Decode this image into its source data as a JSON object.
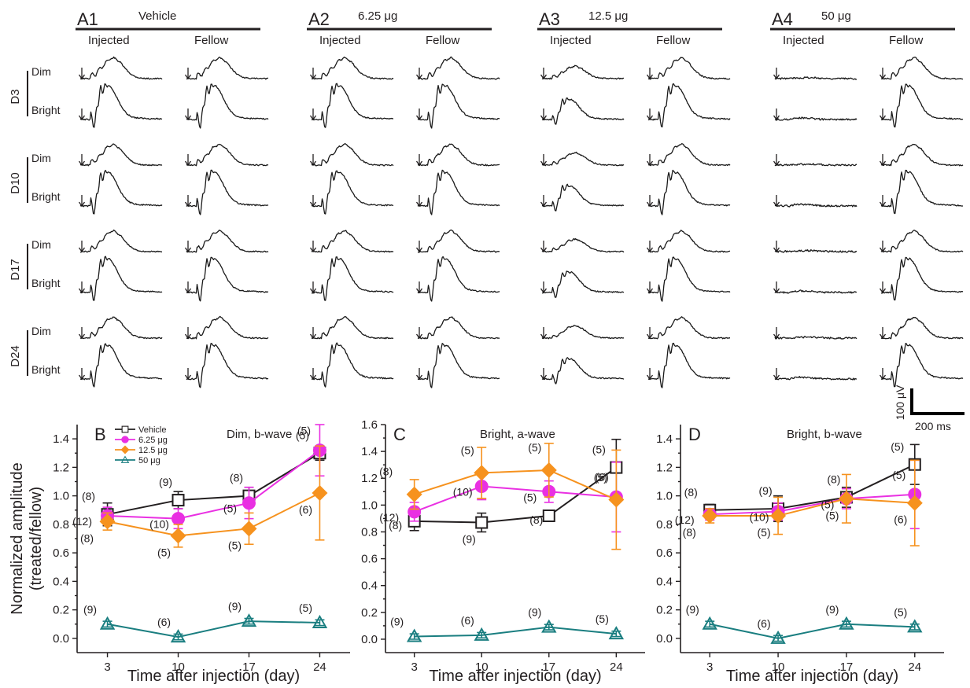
{
  "erg_panels": [
    {
      "id": "A1",
      "dose": "Vehicle",
      "columns": [
        "Injected",
        "Fellow"
      ]
    },
    {
      "id": "A2",
      "dose": "6.25 μg",
      "columns": [
        "Injected",
        "Fellow"
      ]
    },
    {
      "id": "A3",
      "dose": "12.5 μg",
      "columns": [
        "Injected",
        "Fellow"
      ]
    },
    {
      "id": "A4",
      "dose": "50 μg",
      "columns": [
        "Injected",
        "Fellow"
      ]
    }
  ],
  "erg_days": [
    "D3",
    "D10",
    "D17",
    "D24"
  ],
  "erg_row_labels": [
    "Dim",
    "Bright"
  ],
  "erg_amplitude_factor": {
    "A1": {
      "Injected": 1.0,
      "Fellow": 1.0
    },
    "A2": {
      "Injected": 1.0,
      "Fellow": 1.0
    },
    "A3": {
      "Injected": 0.6,
      "Fellow": 1.0
    },
    "A4": {
      "Injected": 0.05,
      "Fellow": 1.0
    }
  },
  "scale_bar": {
    "amplitude_label": "100 μV",
    "time_label": "200 ms"
  },
  "chart_data": [
    {
      "panel": "B",
      "type": "line",
      "title": "Dim, b-wave",
      "xlabel": "Time after injection (day)",
      "ylabel": "Normalized amplitude (treated/fellow)",
      "x": [
        3,
        10,
        17,
        24
      ],
      "xlim": [
        0,
        27
      ],
      "ylim": [
        -0.1,
        1.5
      ],
      "yticks": [
        0.0,
        0.2,
        0.4,
        0.6,
        0.8,
        1.0,
        1.2,
        1.4
      ],
      "legend": {
        "placement": "top-left",
        "entries": [
          "Vehicle",
          "6.25 μg",
          "12.5 μg",
          "50 μg"
        ]
      },
      "series": [
        {
          "name": "Vehicle",
          "color": "#231f20",
          "marker": "square-open",
          "values": [
            0.87,
            0.97,
            1.0,
            1.3
          ],
          "err": [
            0.08,
            0.06,
            0.06,
            0.05
          ],
          "n": [
            "(8)",
            "(9)",
            "(8)",
            "(5)"
          ]
        },
        {
          "name": "6.25 μg",
          "color": "#e930e2",
          "marker": "circle",
          "values": [
            0.86,
            0.84,
            0.95,
            1.32
          ],
          "err": [
            0.06,
            0.07,
            0.11,
            0.18
          ],
          "n": [
            "(12)",
            "(10)",
            "(5)",
            "(5)"
          ]
        },
        {
          "name": "12.5 μg",
          "color": "#f6921e",
          "marker": "diamond",
          "values": [
            0.82,
            0.72,
            0.77,
            1.02
          ],
          "err": [
            0.06,
            0.08,
            0.11,
            0.33
          ],
          "n": [
            "(8)",
            "(5)",
            "(5)",
            "(6)"
          ]
        },
        {
          "name": "50 μg",
          "color": "#1a7e80",
          "marker": "triangle-open",
          "values": [
            0.1,
            0.01,
            0.12,
            0.11
          ],
          "err": [
            0.02,
            0.02,
            0.02,
            0.02
          ],
          "n": [
            "(9)",
            "(6)",
            "(9)",
            "(5)"
          ]
        }
      ]
    },
    {
      "panel": "C",
      "type": "line",
      "title": "Bright, a-wave",
      "xlabel": "Time after injection (day)",
      "x": [
        3,
        10,
        17,
        24
      ],
      "xlim": [
        0,
        27
      ],
      "ylim": [
        -0.1,
        1.6
      ],
      "yticks": [
        0.0,
        0.2,
        0.4,
        0.6,
        0.8,
        1.0,
        1.2,
        1.4,
        1.6
      ],
      "series": [
        {
          "name": "Vehicle",
          "color": "#231f20",
          "marker": "square-open",
          "values": [
            0.88,
            0.87,
            0.92,
            1.28
          ],
          "err": [
            0.07,
            0.07,
            0.03,
            0.21
          ],
          "n": [
            "(8)",
            "(9)",
            "(8)",
            "(5)"
          ]
        },
        {
          "name": "6.25 μg",
          "color": "#e930e2",
          "marker": "circle",
          "values": [
            0.95,
            1.14,
            1.1,
            1.06
          ],
          "err": [
            0.07,
            0.1,
            0.08,
            0.26
          ],
          "n": [
            "(12)",
            "(10)",
            "(5)",
            "(5)"
          ]
        },
        {
          "name": "12.5 μg",
          "color": "#f6921e",
          "marker": "diamond",
          "values": [
            1.08,
            1.24,
            1.26,
            1.04
          ],
          "err": [
            0.11,
            0.19,
            0.2,
            0.37
          ],
          "n": [
            "(8)",
            "(5)",
            "(5)",
            "(6)"
          ]
        },
        {
          "name": "50 μg",
          "color": "#1a7e80",
          "marker": "triangle-open",
          "values": [
            0.02,
            0.03,
            0.09,
            0.04
          ],
          "err": [
            0.02,
            0.02,
            0.02,
            0.02
          ],
          "n": [
            "(9)",
            "(6)",
            "(9)",
            "(5)"
          ]
        }
      ]
    },
    {
      "panel": "D",
      "type": "line",
      "title": "Bright, b-wave",
      "xlabel": "Time after injection (day)",
      "x": [
        3,
        10,
        17,
        24
      ],
      "xlim": [
        0,
        27
      ],
      "ylim": [
        -0.1,
        1.5
      ],
      "yticks": [
        0.0,
        0.2,
        0.4,
        0.6,
        0.8,
        1.0,
        1.2,
        1.4
      ],
      "series": [
        {
          "name": "Vehicle",
          "color": "#231f20",
          "marker": "square-open",
          "values": [
            0.9,
            0.91,
            0.99,
            1.22
          ],
          "err": [
            0.04,
            0.09,
            0.07,
            0.14
          ],
          "n": [
            "(8)",
            "(9)",
            "(8)",
            "(5)"
          ]
        },
        {
          "name": "6.25 μg",
          "color": "#e930e2",
          "marker": "circle",
          "values": [
            0.87,
            0.89,
            0.98,
            1.01
          ],
          "err": [
            0.04,
            0.06,
            0.07,
            0.24
          ],
          "n": [
            "(12)",
            "(10)",
            "(5)",
            "(5)"
          ]
        },
        {
          "name": "12.5 μg",
          "color": "#f6921e",
          "marker": "diamond",
          "values": [
            0.86,
            0.86,
            0.98,
            0.95
          ],
          "err": [
            0.05,
            0.13,
            0.17,
            0.3
          ],
          "n": [
            "(8)",
            "(5)",
            "(5)",
            "(6)"
          ]
        },
        {
          "name": "50 μg",
          "color": "#1a7e80",
          "marker": "triangle-open",
          "values": [
            0.1,
            0.0,
            0.1,
            0.08
          ],
          "err": [
            0.02,
            0.02,
            0.02,
            0.02
          ],
          "n": [
            "(9)",
            "(6)",
            "(9)",
            "(5)"
          ]
        }
      ]
    }
  ]
}
